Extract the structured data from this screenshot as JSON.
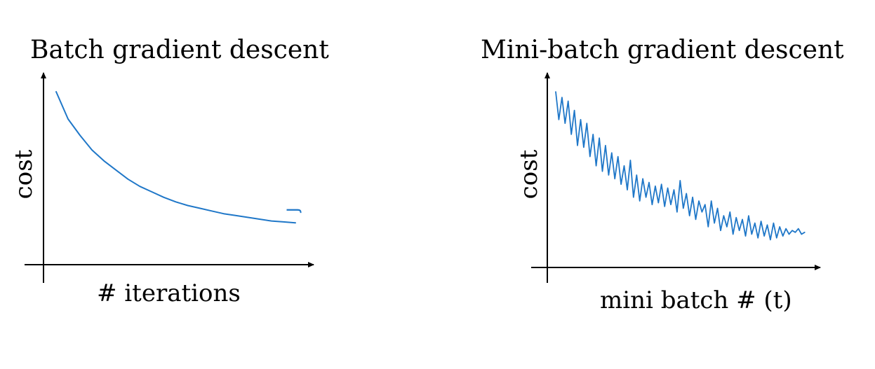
{
  "chart_data": [
    {
      "type": "line",
      "title": "Batch gradient descent",
      "xlabel": "# iterations",
      "ylabel": "cost",
      "color": "#1f77c8",
      "note": "J",
      "x": [
        0,
        1,
        2,
        3,
        4,
        5,
        6,
        7,
        8,
        9,
        10,
        11,
        12,
        13,
        14,
        15,
        16,
        17,
        18,
        19,
        20
      ],
      "y": [
        0.95,
        0.8,
        0.71,
        0.63,
        0.57,
        0.52,
        0.47,
        0.43,
        0.4,
        0.37,
        0.345,
        0.325,
        0.31,
        0.295,
        0.28,
        0.27,
        0.26,
        0.25,
        0.24,
        0.235,
        0.23
      ],
      "xlim": [
        0,
        21
      ],
      "ylim": [
        0,
        1
      ]
    },
    {
      "type": "line",
      "title": "Mini-batch gradient descent",
      "xlabel": "mini batch # (t)",
      "ylabel": "cost",
      "color": "#1f77c8",
      "x": [
        0,
        1,
        2,
        3,
        4,
        5,
        6,
        7,
        8,
        9,
        10,
        11,
        12,
        13,
        14,
        15,
        16,
        17,
        18,
        19,
        20,
        21,
        22,
        23,
        24,
        25,
        26,
        27,
        28,
        29,
        30,
        31,
        32,
        33,
        34,
        35,
        36,
        37,
        38,
        39,
        40,
        41,
        42,
        43,
        44,
        45,
        46,
        47,
        48,
        49,
        50,
        51,
        52,
        53,
        54,
        55,
        56,
        57,
        58,
        59,
        60,
        61,
        62,
        63,
        64,
        65,
        66,
        67,
        68,
        69,
        70,
        71,
        72,
        73,
        74,
        75,
        76,
        77,
        78,
        79,
        80
      ],
      "y": [
        0.95,
        0.8,
        0.92,
        0.78,
        0.9,
        0.72,
        0.85,
        0.66,
        0.8,
        0.65,
        0.78,
        0.6,
        0.72,
        0.55,
        0.7,
        0.52,
        0.66,
        0.5,
        0.62,
        0.48,
        0.6,
        0.45,
        0.55,
        0.42,
        0.58,
        0.38,
        0.5,
        0.36,
        0.48,
        0.38,
        0.46,
        0.34,
        0.44,
        0.35,
        0.45,
        0.33,
        0.43,
        0.34,
        0.42,
        0.3,
        0.47,
        0.32,
        0.4,
        0.28,
        0.38,
        0.26,
        0.36,
        0.3,
        0.34,
        0.22,
        0.36,
        0.24,
        0.32,
        0.2,
        0.28,
        0.22,
        0.3,
        0.18,
        0.27,
        0.2,
        0.26,
        0.17,
        0.28,
        0.18,
        0.24,
        0.16,
        0.25,
        0.17,
        0.23,
        0.15,
        0.24,
        0.16,
        0.22,
        0.17,
        0.21,
        0.18,
        0.2,
        0.19,
        0.21,
        0.18,
        0.19
      ],
      "xlim": [
        0,
        83
      ],
      "ylim": [
        0,
        1
      ]
    }
  ]
}
